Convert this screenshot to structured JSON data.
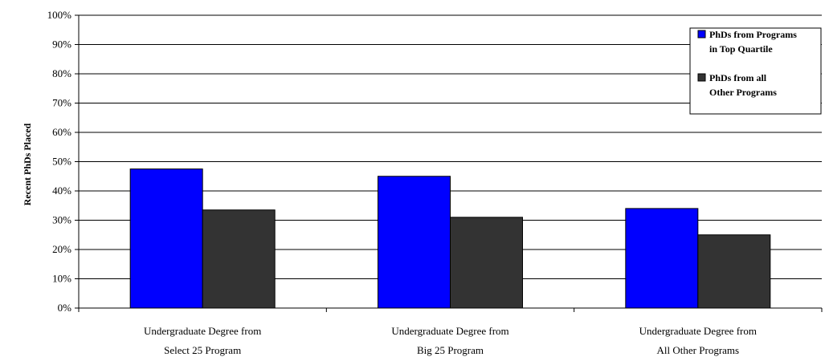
{
  "chart_data": {
    "type": "bar",
    "title": "",
    "xlabel": "",
    "ylabel": "Recent PhDs Placed",
    "ylim": [
      0,
      100
    ],
    "yticks": [
      0,
      10,
      20,
      30,
      40,
      50,
      60,
      70,
      80,
      90,
      100
    ],
    "ytick_labels": [
      "0%",
      "10%",
      "20%",
      "30%",
      "40%",
      "50%",
      "60%",
      "70%",
      "80%",
      "90%",
      "100%"
    ],
    "categories": [
      [
        "Undergraduate Degree from",
        "Select 25 Program"
      ],
      [
        "Undergraduate Degree from",
        "Big 25 Program"
      ],
      [
        "Undergraduate Degree from",
        "All Other Programs"
      ]
    ],
    "series": [
      {
        "name": [
          "PhDs from Programs",
          "in Top Quartile"
        ],
        "color": "#0000ff",
        "values": [
          47.5,
          45,
          34
        ]
      },
      {
        "name": [
          "PhDs from all",
          "Other Programs"
        ],
        "color": "#333333",
        "values": [
          33.5,
          31,
          25
        ]
      }
    ],
    "grid": true,
    "legend_position": "top-right"
  }
}
